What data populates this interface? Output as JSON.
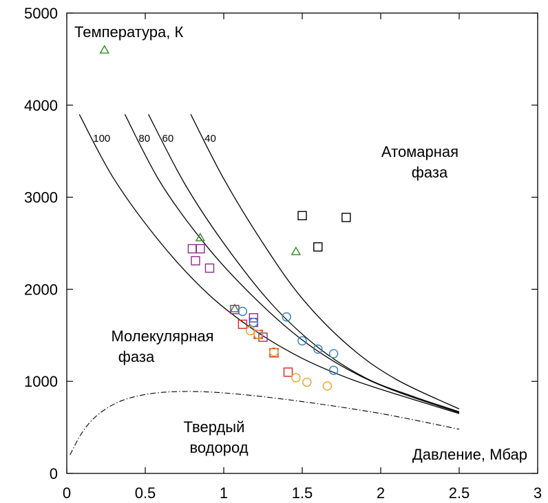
{
  "chart_data": {
    "type": "scatter",
    "title": "",
    "xlim": [
      0,
      3
    ],
    "ylim": [
      0,
      5000
    ],
    "x_ticks": [
      "0",
      "0.5",
      "1",
      "1.5",
      "2",
      "2.5",
      "3"
    ],
    "y_ticks": [
      "0",
      "1000",
      "2000",
      "3000",
      "4000",
      "5000"
    ],
    "grid": false,
    "annotations": {
      "ylabel": "Температура, К",
      "xlabel": "Давление, Мбар",
      "atomic": [
        "Атомарная",
        "фаза"
      ],
      "molecular": [
        "Молекулярная",
        "фаза"
      ],
      "solid": [
        "Твердый",
        "водород"
      ]
    },
    "curves": [
      {
        "label": "100",
        "points": [
          [
            0.08,
            3900
          ],
          [
            0.3,
            3200
          ],
          [
            0.6,
            2500
          ],
          [
            0.9,
            1950
          ],
          [
            1.2,
            1550
          ],
          [
            1.5,
            1250
          ],
          [
            1.8,
            1030
          ],
          [
            2.1,
            860
          ],
          [
            2.5,
            650
          ]
        ]
      },
      {
        "label": "80",
        "points": [
          [
            0.37,
            3900
          ],
          [
            0.6,
            3150
          ],
          [
            0.9,
            2450
          ],
          [
            1.2,
            1900
          ],
          [
            1.5,
            1450
          ],
          [
            1.8,
            1120
          ],
          [
            2.1,
            890
          ],
          [
            2.5,
            660
          ]
        ]
      },
      {
        "label": "60",
        "points": [
          [
            0.52,
            3900
          ],
          [
            0.75,
            3150
          ],
          [
            1.0,
            2500
          ],
          [
            1.3,
            1850
          ],
          [
            1.6,
            1370
          ],
          [
            1.9,
            1040
          ],
          [
            2.2,
            840
          ],
          [
            2.5,
            670
          ]
        ]
      },
      {
        "label": "40",
        "points": [
          [
            0.79,
            3900
          ],
          [
            1.0,
            3200
          ],
          [
            1.25,
            2500
          ],
          [
            1.5,
            1900
          ],
          [
            1.8,
            1380
          ],
          [
            2.1,
            1020
          ],
          [
            2.5,
            700
          ]
        ]
      }
    ],
    "melting_curve": [
      [
        0.02,
        200
      ],
      [
        0.1,
        450
      ],
      [
        0.2,
        640
      ],
      [
        0.35,
        790
      ],
      [
        0.55,
        870
      ],
      [
        0.8,
        890
      ],
      [
        1.1,
        860
      ],
      [
        1.5,
        780
      ],
      [
        2.0,
        650
      ],
      [
        2.5,
        480
      ]
    ],
    "series": [
      {
        "marker": "triangle",
        "color": "#2e8b1e",
        "points": [
          [
            0.24,
            4600
          ],
          [
            0.85,
            2560
          ],
          [
            1.07,
            1790
          ],
          [
            1.46,
            2410
          ]
        ]
      },
      {
        "marker": "square",
        "color": "#000000",
        "points": [
          [
            1.5,
            2800
          ],
          [
            1.6,
            2460
          ],
          [
            1.78,
            2780
          ]
        ]
      },
      {
        "marker": "square",
        "color": "#8b2a8b",
        "points": [
          [
            0.8,
            2440
          ],
          [
            0.82,
            2310
          ],
          [
            0.85,
            2440
          ],
          [
            0.91,
            2230
          ],
          [
            1.07,
            1780
          ],
          [
            1.19,
            1690
          ],
          [
            1.19,
            1640
          ],
          [
            1.25,
            1480
          ]
        ]
      },
      {
        "marker": "circle",
        "color": "#2e7fc2",
        "points": [
          [
            1.12,
            1760
          ],
          [
            1.19,
            1640
          ],
          [
            1.4,
            1700
          ],
          [
            1.5,
            1440
          ],
          [
            1.6,
            1350
          ],
          [
            1.7,
            1300
          ],
          [
            1.7,
            1120
          ]
        ]
      },
      {
        "marker": "square",
        "color": "#e02020",
        "points": [
          [
            1.12,
            1620
          ],
          [
            1.22,
            1510
          ],
          [
            1.32,
            1310
          ],
          [
            1.41,
            1100
          ]
        ]
      },
      {
        "marker": "circle",
        "color": "#f0a020",
        "points": [
          [
            1.17,
            1550
          ],
          [
            1.22,
            1510
          ],
          [
            1.32,
            1320
          ],
          [
            1.46,
            1040
          ],
          [
            1.53,
            990
          ],
          [
            1.66,
            950
          ]
        ]
      }
    ]
  }
}
